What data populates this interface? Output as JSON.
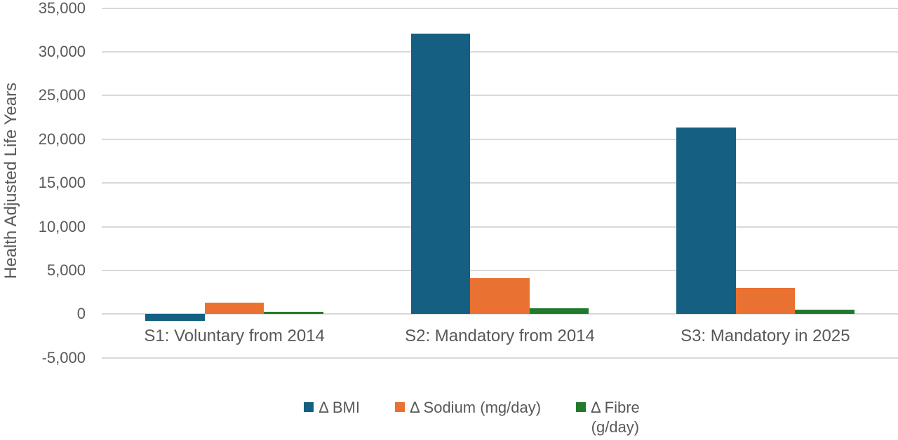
{
  "chart_data": {
    "type": "bar",
    "title": "",
    "xlabel": "",
    "ylabel": "Health Adjusted Life Years",
    "categories": [
      "S1: Voluntary from 2014",
      "S2: Mandatory from 2014",
      "S3: Mandatory in 2025"
    ],
    "series": [
      {
        "name": "Δ BMI",
        "color": "#156082",
        "values": [
          -800,
          32100,
          21300
        ]
      },
      {
        "name": "Δ Sodium (mg/day)",
        "color": "#E97132",
        "values": [
          1300,
          4100,
          3000
        ]
      },
      {
        "name": "Δ Fibre (g/day)",
        "color": "#217A2B",
        "values": [
          300,
          650,
          500
        ]
      }
    ],
    "ylim": [
      -5000,
      35000
    ],
    "ytick_step": 5000,
    "yticks": [
      {
        "value": 35000,
        "label": "35,000"
      },
      {
        "value": 30000,
        "label": "30,000"
      },
      {
        "value": 25000,
        "label": "25,000"
      },
      {
        "value": 20000,
        "label": "20,000"
      },
      {
        "value": 15000,
        "label": "15,000"
      },
      {
        "value": 10000,
        "label": "10,000"
      },
      {
        "value": 5000,
        "label": "5,000"
      },
      {
        "value": 0,
        "label": "0"
      },
      {
        "value": -5000,
        "label": "-5,000"
      }
    ],
    "grid": true,
    "legend_position": "bottom",
    "legend": [
      {
        "lines": [
          "Δ BMI"
        ],
        "color": "#156082"
      },
      {
        "lines": [
          "Δ Sodium (mg/day)"
        ],
        "color": "#E97132"
      },
      {
        "lines": [
          "Δ Fibre",
          "(g/day)"
        ],
        "color": "#217A2B"
      }
    ],
    "colors": {
      "background": "#FFFFFF",
      "gridline": "#D9D9D9",
      "text": "#595959"
    }
  }
}
